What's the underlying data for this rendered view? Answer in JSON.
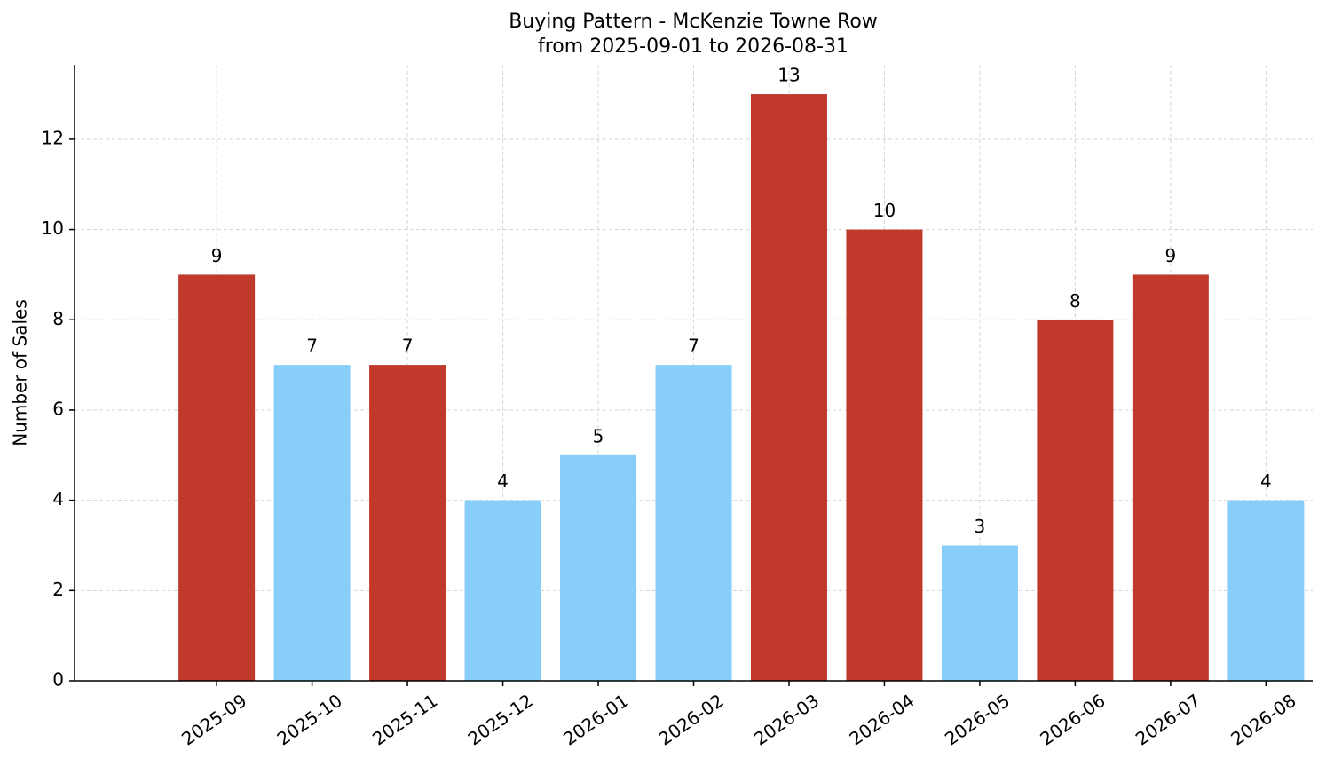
{
  "chart_data": {
    "type": "bar",
    "title": "Buying Pattern - McKenzie Towne Row",
    "subtitle": "from 2025-09-01 to 2026-08-31",
    "y_label": "Number of Sales",
    "categories": [
      "2025-09",
      "2025-10",
      "2025-11",
      "2025-12",
      "2026-01",
      "2026-02",
      "2026-03",
      "2026-04",
      "2026-05",
      "2026-06",
      "2026-07",
      "2026-08"
    ],
    "values": [
      9,
      7,
      7,
      4,
      5,
      7,
      13,
      10,
      3,
      8,
      9,
      4
    ],
    "colors": [
      "#c0392b",
      "#87cefa",
      "#c0392b",
      "#87cefa",
      "#87cefa",
      "#87cefa",
      "#c0392b",
      "#c0392b",
      "#87cefa",
      "#c0392b",
      "#c0392b",
      "#87cefa"
    ],
    "ylim": [
      0,
      13.65
    ],
    "yticks": [
      0,
      2,
      4,
      6,
      8,
      10,
      12
    ],
    "grid": true
  }
}
